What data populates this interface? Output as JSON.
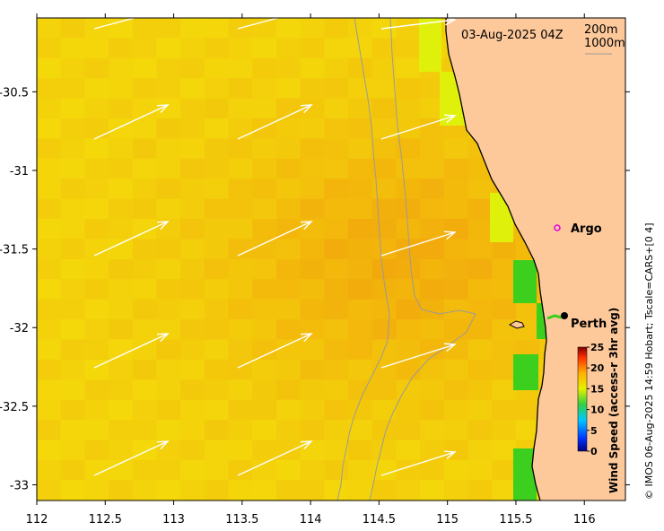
{
  "timestamp": "03-Aug-2025 04Z",
  "contours": [
    "200m",
    "1000m"
  ],
  "places": [
    {
      "name": "Argo",
      "lon": 115.78,
      "lat": -31.46,
      "marker": "magenta-ring"
    },
    {
      "name": "Perth",
      "lon": 115.86,
      "lat": -31.95,
      "marker": "black-dot"
    }
  ],
  "axes": {
    "x_ticks": [
      "112",
      "112.5",
      "113",
      "113.5",
      "114",
      "114.5",
      "115",
      "115.5",
      "116"
    ],
    "y_ticks": [
      "-30.5",
      "-31",
      "-31.5",
      "-32",
      "-32.5",
      "-33"
    ],
    "lon_range": [
      112,
      116.3
    ],
    "lat_range": [
      -33.1,
      -30.03
    ]
  },
  "colorbar": {
    "label": "Wind Speed (access-r 3hr avg)",
    "ticks": [
      "25",
      "20",
      "15",
      "10",
      "5",
      "0"
    ],
    "range": [
      0,
      25
    ]
  },
  "credit": "© IMOS 06-Aug-2025 14:59 Hobart; Tscale=CARS+[0 4]",
  "colors": {
    "land": "#fdc99b",
    "field_low": "#f4e10a",
    "field_high": "#f2a30d",
    "arrows": "#ffffff",
    "isobath": "#9a9a9a",
    "coast_green": "#3ccf1e"
  }
}
